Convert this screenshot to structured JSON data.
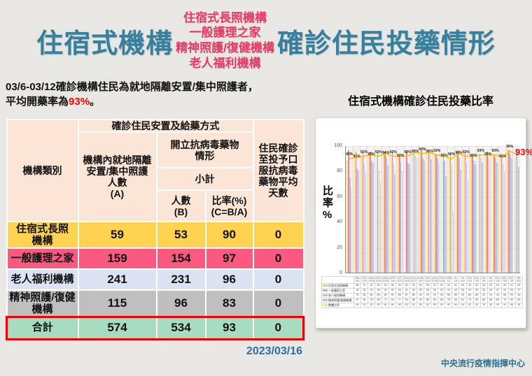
{
  "title": {
    "left": "住宿式機構",
    "middle_lines": [
      "住宿式長照機構",
      "一般護理之家",
      "精神照護/復健機構",
      "老人福利機構"
    ],
    "right": "確診住民投藥情形"
  },
  "summary": {
    "prefix": "03/6-03/12確診機構住民為就地隔離安置/集中照護者，\n平均開藥率為",
    "highlight": "93%",
    "suffix": "。"
  },
  "table": {
    "header": {
      "col_category": "機構類別",
      "group_title": "確診住民安置及給藥方式",
      "col_a": "機構內就地隔離\n安置/集中照護\n人數\n(A)",
      "antiviral_title": "開立抗病毒藥物\n情形",
      "subtotal": "小計",
      "col_b": "人數\n(B)",
      "col_c": "比率(%)\n(C=B/A)",
      "col_days": "住民確診\n至投予口\n服抗病毒\n藥物平均\n天數"
    },
    "rows": [
      {
        "label": "住宿式長照\n機構",
        "a": "59",
        "b": "53",
        "c": "90",
        "days": "0",
        "color": "#ffd24f"
      },
      {
        "label": "一般護理之家",
        "a": "159",
        "b": "154",
        "c": "97",
        "days": "0",
        "color": "#fa5a7f"
      },
      {
        "label": "老人福利機構",
        "a": "241",
        "b": "231",
        "c": "96",
        "days": "0",
        "color": "#dbe3f2"
      },
      {
        "label": "精神照護/復健\n機構",
        "a": "115",
        "b": "96",
        "c": "83",
        "days": "0",
        "color": "#bfbfbf"
      },
      {
        "label": "合計",
        "a": "574",
        "b": "534",
        "c": "93",
        "days": "0",
        "color": "#a7dcc1"
      }
    ],
    "total_border_color": "#f00000"
  },
  "date": "2023/03/16",
  "footer": "中央流行疫情指揮中心",
  "chart_data": {
    "type": "bar",
    "title": "住宿式機構確診住民投藥比率",
    "ylabel": "比率%",
    "ylim": [
      0,
      100
    ],
    "yticks": [
      0,
      20,
      40,
      60,
      80,
      100
    ],
    "legend_position": "bottom-table",
    "grid": true,
    "categories": [
      "9/26-10/2",
      "10/3-10/9",
      "10/10-10/16",
      "10/17-10/23",
      "10/24-10/30",
      "10/31-11/6",
      "11/7-11/13",
      "11/14-11/20",
      "11/21-11/27",
      "11/28-12/4",
      "12/5-12/11",
      "12/12-12/18",
      "12/19-12/25",
      "12/26-1/1",
      "1/2-1/8",
      "1/9-1/15",
      "1/16-1/22",
      "1/23-1/29",
      "1/30-2/5",
      "2/6-2/12",
      "2/13-2/19",
      "2/20-2/26",
      "2/27-3/5",
      "3/6-3/12"
    ],
    "series": [
      {
        "name": "住宿式長照機構",
        "type": "bar",
        "color": "#ffe07a",
        "values": [
          88,
          97,
          90,
          93,
          92,
          96,
          90,
          93,
          90,
          96,
          95,
          97,
          94,
          92,
          91,
          95,
          93,
          92,
          94,
          92,
          94,
          90,
          97,
          90
        ]
      },
      {
        "name": "一般護理之家",
        "type": "bar",
        "color": "#f87fa2",
        "values": [
          96,
          95,
          94,
          95,
          94,
          95,
          95,
          91,
          96,
          95,
          96,
          95,
          93,
          94,
          93,
          96,
          94,
          93,
          93,
          95,
          92,
          93,
          96,
          97
        ]
      },
      {
        "name": "老人福利機構",
        "type": "bar",
        "color": "#aec6e8",
        "values": [
          75,
          82,
          85,
          88,
          80,
          90,
          85,
          87,
          86,
          92,
          90,
          93,
          90,
          88,
          85,
          90,
          86,
          88,
          90,
          91,
          90,
          85,
          93,
          96
        ]
      },
      {
        "name": "精神照護/復健機構",
        "type": "bar",
        "color": "#cccccc",
        "values": [
          67,
          80,
          78,
          86,
          71,
          84,
          77,
          80,
          85,
          90,
          88,
          89,
          85,
          76,
          48,
          81,
          73,
          85,
          86,
          88,
          86,
          79,
          90,
          83
        ]
      },
      {
        "name": "整體比率",
        "type": "line",
        "color": "#ffc000",
        "values": [
          90,
          91,
          92,
          93,
          92,
          94,
          92,
          92,
          92,
          95,
          94,
          95,
          93,
          92,
          90,
          94,
          92,
          92,
          93,
          93,
          93,
          91,
          96,
          93
        ]
      }
    ],
    "final_label": "93%",
    "final_label_color": "#ff0000"
  }
}
